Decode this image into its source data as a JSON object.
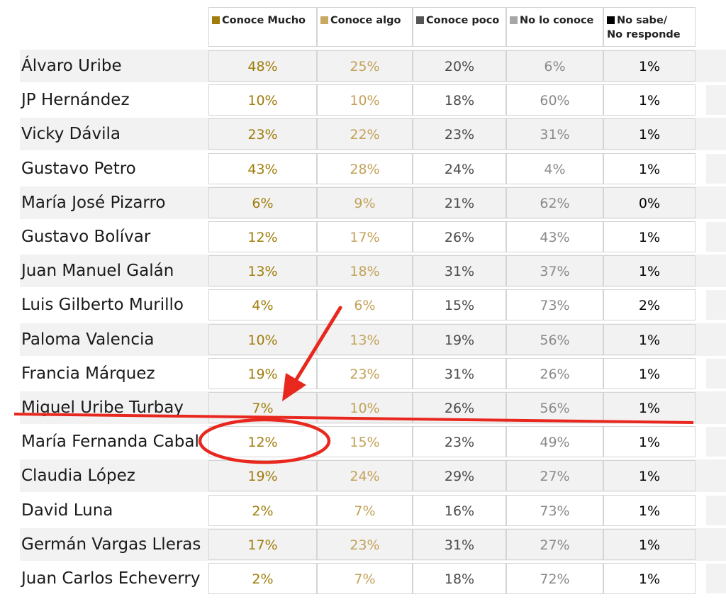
{
  "colors": {
    "conoce_mucho": "#a07d0c",
    "conoce_algo": "#c9a962",
    "conoce_poco": "#555555",
    "no_lo_conoce": "#a6a6a6",
    "no_sabe": "#000000",
    "annotation": "#e8281e"
  },
  "chart_data": {
    "type": "table",
    "columns": [
      {
        "label": "Conoce Mucho",
        "swatch_color": "#a07d0c",
        "text_color": "#a07d0c"
      },
      {
        "label": "Conoce  algo",
        "swatch_color": "#c9a962",
        "text_color": "#c3a25a"
      },
      {
        "label": "Conoce poco",
        "swatch_color": "#555555",
        "text_color": "#4a4a4a"
      },
      {
        "label": "No lo conoce",
        "swatch_color": "#a6a6a6",
        "text_color": "#8a8a8a"
      },
      {
        "label": "No sabe/\nNo responde",
        "swatch_color": "#000000",
        "text_color": "#000000"
      }
    ],
    "rows": [
      {
        "name": "Álvaro Uribe",
        "values": [
          "48%",
          "25%",
          "20%",
          "6%",
          "1%"
        ]
      },
      {
        "name": "JP Hernández",
        "values": [
          "10%",
          "10%",
          "18%",
          "60%",
          "1%"
        ]
      },
      {
        "name": "Vicky Dávila",
        "values": [
          "23%",
          "22%",
          "23%",
          "31%",
          "1%"
        ]
      },
      {
        "name": "Gustavo Petro",
        "values": [
          "43%",
          "28%",
          "24%",
          "4%",
          "1%"
        ]
      },
      {
        "name": "María José Pizarro",
        "values": [
          "6%",
          "9%",
          "21%",
          "62%",
          "0%"
        ]
      },
      {
        "name": "Gustavo Bolívar",
        "values": [
          "12%",
          "17%",
          "26%",
          "43%",
          "1%"
        ]
      },
      {
        "name": " Juan Manuel Galán",
        "values": [
          "13%",
          "18%",
          "31%",
          "37%",
          "1%"
        ]
      },
      {
        "name": "Luis Gilberto Murillo",
        "values": [
          "4%",
          "6%",
          "15%",
          "73%",
          "2%"
        ]
      },
      {
        "name": "Paloma Valencia",
        "values": [
          "10%",
          "13%",
          "19%",
          "56%",
          "1%"
        ]
      },
      {
        "name": "Francia Márquez",
        "values": [
          "19%",
          "23%",
          "31%",
          "26%",
          "1%"
        ]
      },
      {
        "name": "Miguel Uribe Turbay",
        "values": [
          "7%",
          "10%",
          "26%",
          "56%",
          "1%"
        ]
      },
      {
        "name": "María Fernanda Cabal",
        "values": [
          "12%",
          "15%",
          "23%",
          "49%",
          "1%"
        ]
      },
      {
        "name": "Claudia López",
        "values": [
          "19%",
          "24%",
          "29%",
          "27%",
          "1%"
        ]
      },
      {
        "name": "David Luna",
        "values": [
          "2%",
          "7%",
          "16%",
          "73%",
          "1%"
        ]
      },
      {
        "name": "Germán Vargas Lleras",
        "values": [
          "17%",
          "23%",
          "31%",
          "27%",
          "1%"
        ]
      },
      {
        "name": "Juan Carlos Echeverry",
        "values": [
          "2%",
          "7%",
          "18%",
          "72%",
          "1%"
        ]
      }
    ]
  }
}
